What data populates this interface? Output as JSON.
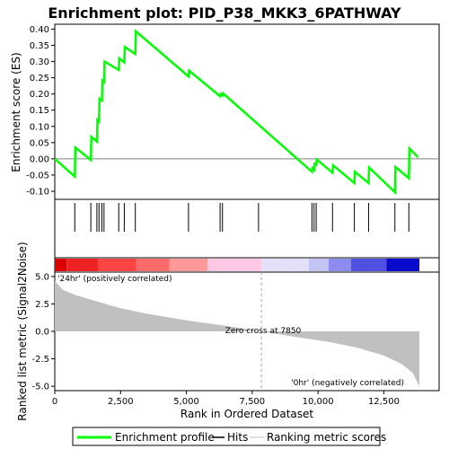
{
  "chart_data": {
    "type": "line",
    "title": "Enrichment plot: PID_P38_MKK3_6PATHWAY",
    "es_panel": {
      "ylabel": "Enrichment score (ES)",
      "ylim": [
        -0.125,
        0.415
      ],
      "yticks": [
        -0.1,
        -0.05,
        0.0,
        0.05,
        0.1,
        0.15,
        0.2,
        0.25,
        0.3,
        0.35,
        0.4
      ],
      "ytick_labels": [
        "-0.10",
        "-0.05",
        "0.00",
        "0.05",
        "0.10",
        "0.15",
        "0.20",
        "0.25",
        "0.30",
        "0.35",
        "0.40"
      ],
      "series_color": "#00ff00",
      "points": [
        [
          0,
          0.0
        ],
        [
          760,
          -0.055
        ],
        [
          780,
          0.035
        ],
        [
          1370,
          -0.004
        ],
        [
          1390,
          0.068
        ],
        [
          1600,
          0.053
        ],
        [
          1620,
          0.12
        ],
        [
          1680,
          0.115
        ],
        [
          1700,
          0.185
        ],
        [
          1790,
          0.18
        ],
        [
          1810,
          0.242
        ],
        [
          1870,
          0.238
        ],
        [
          1890,
          0.3
        ],
        [
          2430,
          0.274
        ],
        [
          2450,
          0.31
        ],
        [
          2640,
          0.297
        ],
        [
          2660,
          0.345
        ],
        [
          3060,
          0.323
        ],
        [
          3080,
          0.393
        ],
        [
          5080,
          0.254
        ],
        [
          5100,
          0.272
        ],
        [
          6280,
          0.193
        ],
        [
          6300,
          0.2
        ],
        [
          6370,
          0.195
        ],
        [
          6390,
          0.202
        ],
        [
          9770,
          -0.04
        ],
        [
          9790,
          -0.028
        ],
        [
          9850,
          -0.033
        ],
        [
          9870,
          -0.015
        ],
        [
          9930,
          -0.018
        ],
        [
          9950,
          -0.002
        ],
        [
          10550,
          -0.043
        ],
        [
          10570,
          -0.02
        ],
        [
          11380,
          -0.075
        ],
        [
          11400,
          -0.04
        ],
        [
          11920,
          -0.075
        ],
        [
          11940,
          -0.027
        ],
        [
          12920,
          -0.103
        ],
        [
          12940,
          -0.025
        ],
        [
          13450,
          -0.06
        ],
        [
          13470,
          0.032
        ],
        [
          13800,
          0.005
        ]
      ]
    },
    "hits": [
      760,
      1370,
      1600,
      1680,
      1790,
      1870,
      2430,
      2640,
      3060,
      5080,
      6280,
      6370,
      7740,
      9770,
      9850,
      9930,
      10550,
      11380,
      11920,
      12920,
      13450
    ],
    "ranked_panel": {
      "ylabel": "Ranked list metric (Signal2Noise)",
      "ylim": [
        -5.4,
        5.4
      ],
      "yticks": [
        -5.0,
        -2.5,
        0.0,
        2.5,
        5.0
      ],
      "ytick_labels": [
        "-5.0",
        "-2.5",
        "0.0",
        "2.5",
        "5.0"
      ],
      "metric_curve": [
        [
          0,
          4.6
        ],
        [
          300,
          3.8
        ],
        [
          800,
          3.3
        ],
        [
          1500,
          2.8
        ],
        [
          2500,
          2.1
        ],
        [
          3500,
          1.6
        ],
        [
          5000,
          1.0
        ],
        [
          6500,
          0.5
        ],
        [
          7850,
          0.0
        ],
        [
          9000,
          -0.45
        ],
        [
          10500,
          -1.0
        ],
        [
          11500,
          -1.5
        ],
        [
          12500,
          -2.2
        ],
        [
          13200,
          -3.0
        ],
        [
          13600,
          -3.8
        ],
        [
          13850,
          -5.0
        ]
      ],
      "zero_cross_label": "Zero cross at 7850",
      "zero_cross": 7850,
      "pos_label": "'24hr' (positively correlated)",
      "neg_label": "'0hr' (negatively correlated)",
      "pos_color": "#ff0000",
      "neg_color": "#0000ff",
      "fill_color": "#c0c0c0"
    },
    "colorbar": {
      "segments": [
        {
          "from": 0,
          "to": 450,
          "color": "#dd0000"
        },
        {
          "from": 450,
          "to": 1650,
          "color": "#ee2222"
        },
        {
          "from": 1650,
          "to": 3100,
          "color": "#ff4444"
        },
        {
          "from": 3100,
          "to": 4350,
          "color": "#ff6a6a"
        },
        {
          "from": 4350,
          "to": 5800,
          "color": "#ff9999"
        },
        {
          "from": 5800,
          "to": 7850,
          "color": "#ffc8e4"
        },
        {
          "from": 7850,
          "to": 9650,
          "color": "#e4e0f8"
        },
        {
          "from": 9650,
          "to": 10400,
          "color": "#c4c4f4"
        },
        {
          "from": 10400,
          "to": 11250,
          "color": "#8c8cf0"
        },
        {
          "from": 11250,
          "to": 12600,
          "color": "#5050e0"
        },
        {
          "from": 12600,
          "to": 13850,
          "color": "#0a0acc"
        }
      ]
    },
    "xaxis": {
      "label": "Rank in Ordered Dataset",
      "xlim": [
        0,
        14600
      ],
      "ticks": [
        0,
        2500,
        5000,
        7500,
        10000,
        12500
      ],
      "tick_labels": [
        "0",
        "2,500",
        "5,000",
        "7,500",
        "10,000",
        "12,500"
      ]
    },
    "legend": {
      "placement": "bottom",
      "items": [
        {
          "label": "Enrichment profile",
          "color": "#00ff00"
        },
        {
          "label": "Hits",
          "color": "#000000"
        },
        {
          "label": "Ranking metric scores",
          "color": "#c0c0c0"
        }
      ]
    }
  }
}
